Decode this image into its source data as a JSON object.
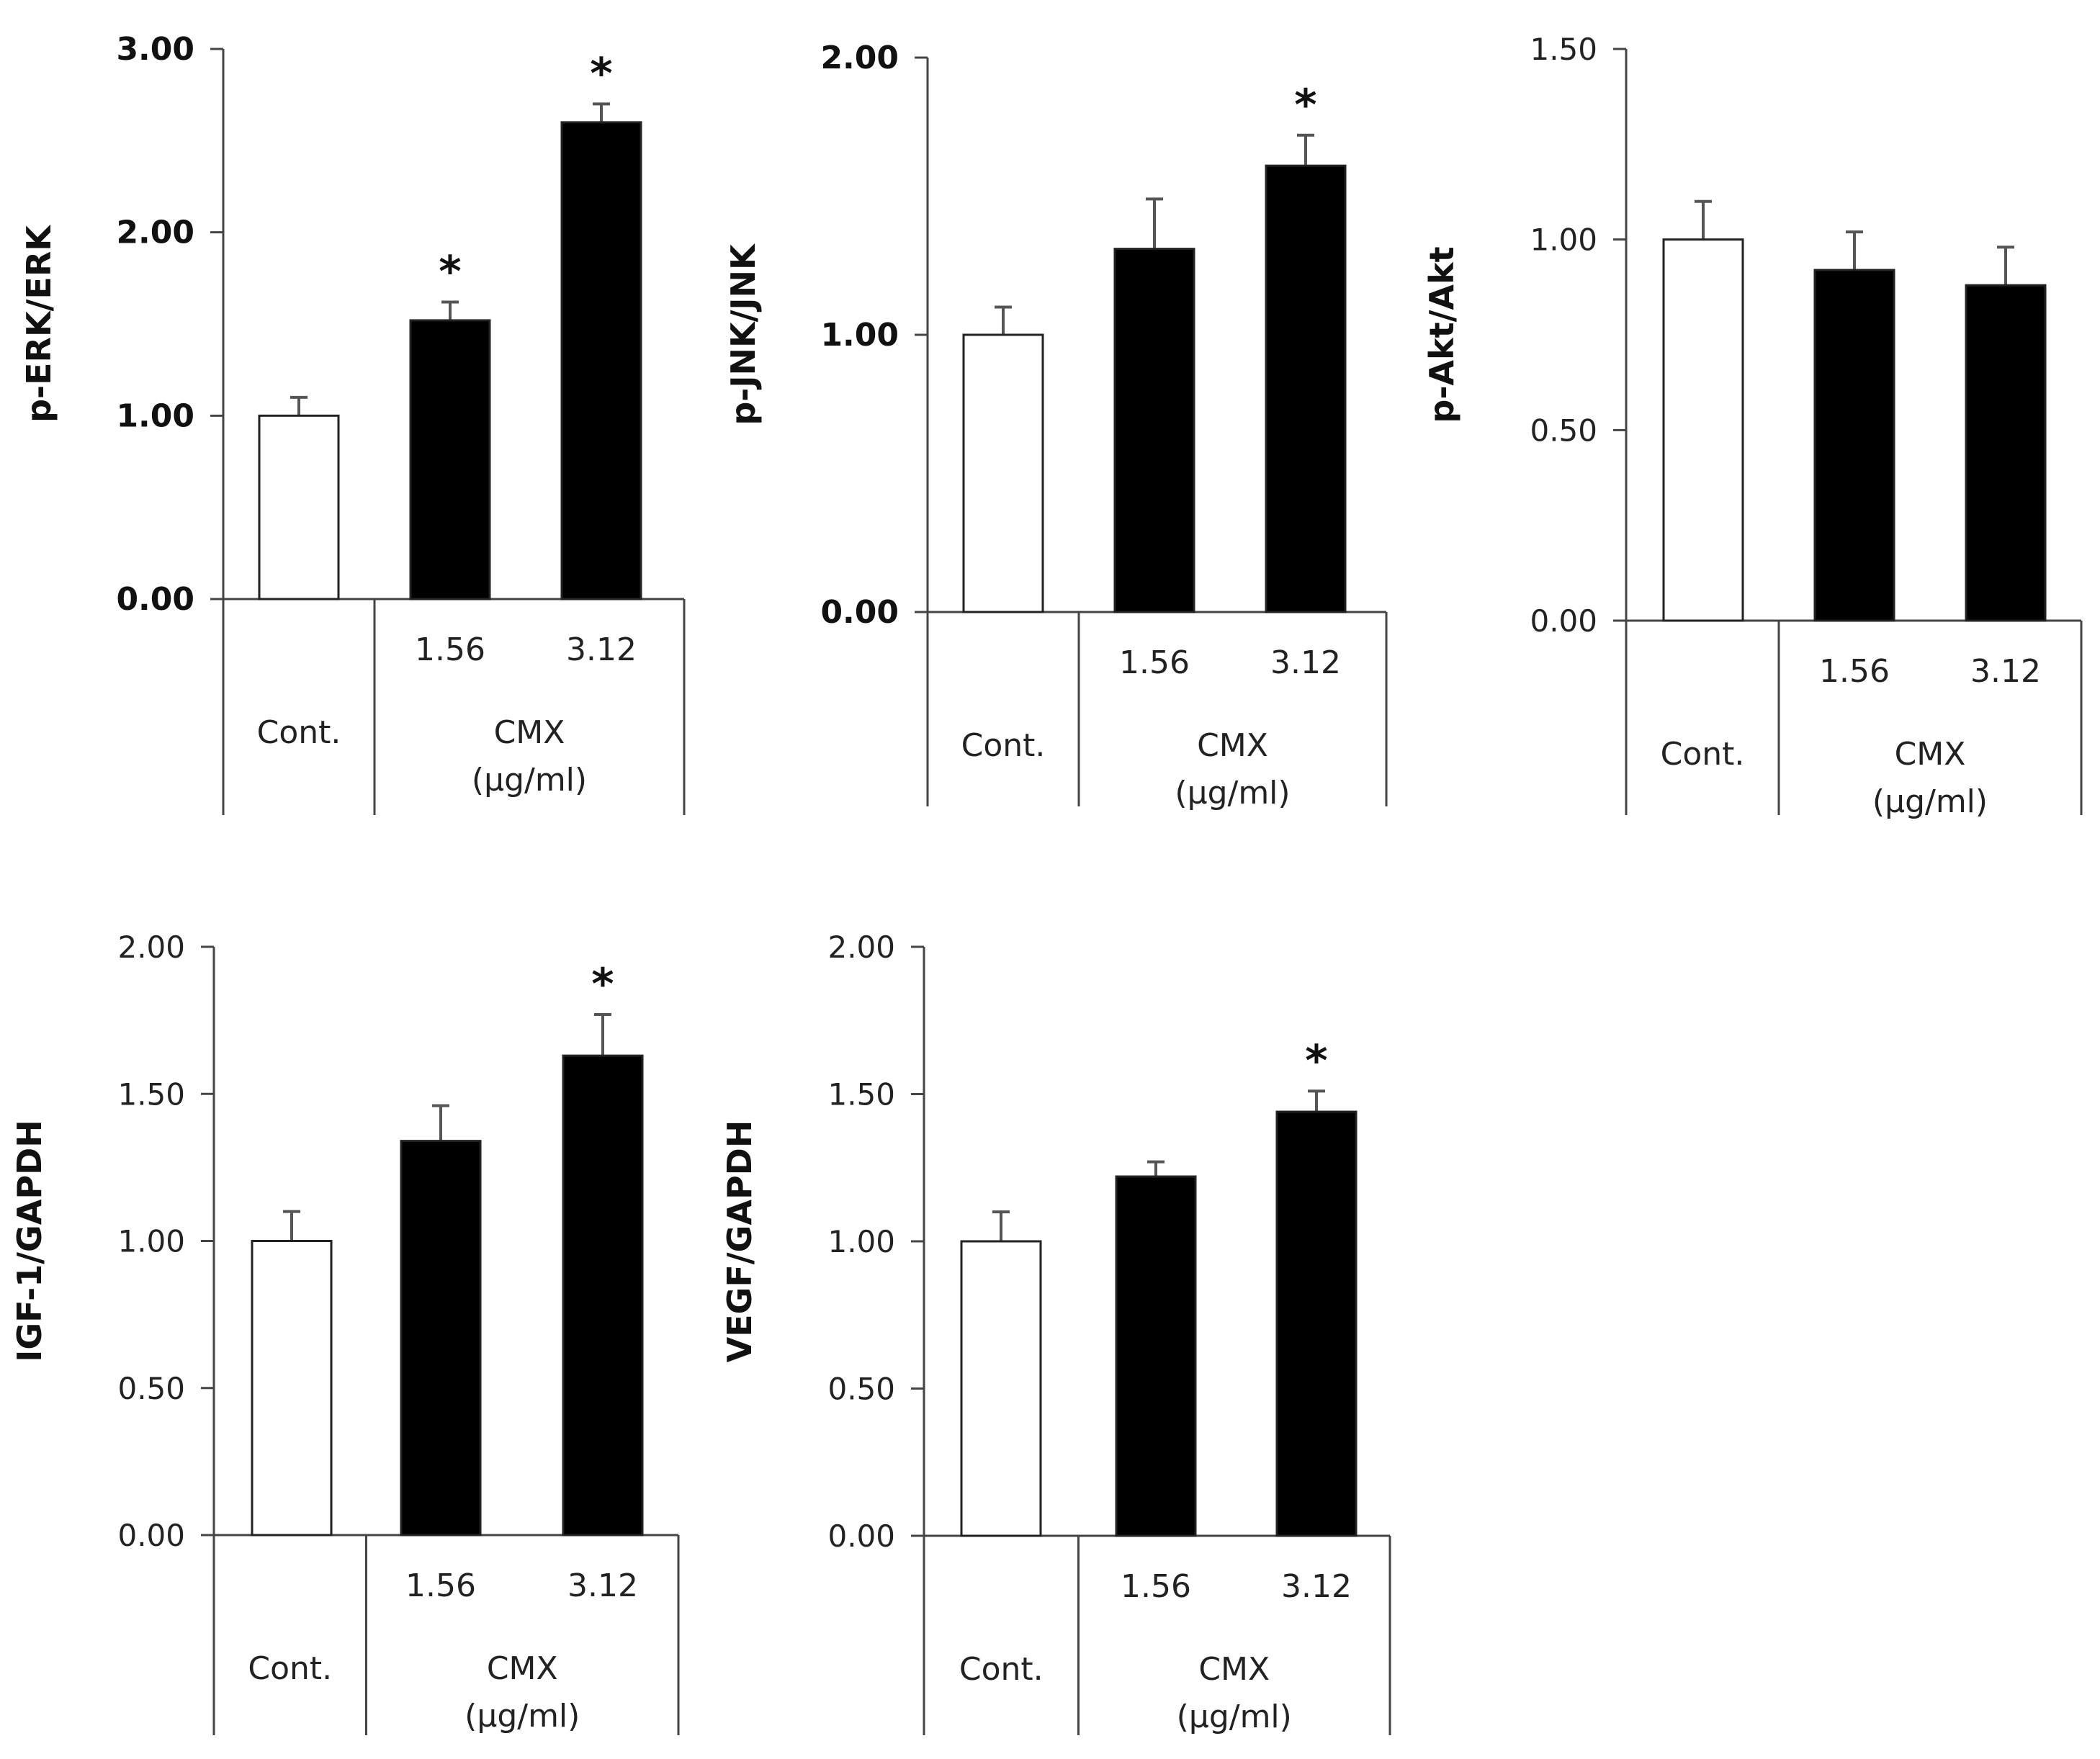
{
  "chart_data": [
    {
      "type": "bar",
      "ylabel": "p-ERK/ERK",
      "ylim": [
        0,
        3
      ],
      "yticks": [
        "0.00",
        "1.00",
        "2.00",
        "3.00"
      ],
      "tick_style": "bold",
      "categories": [
        "Cont.",
        "1.56",
        "3.12"
      ],
      "values": [
        1.0,
        1.52,
        2.6
      ],
      "errors": [
        0.1,
        0.1,
        0.1
      ],
      "significant": [
        false,
        true,
        true
      ],
      "star": "*",
      "group_label": "Cont.",
      "treatment_label": "CMX",
      "unit_label": "(µg/ml)",
      "fills": [
        "#ffffff",
        "#000000",
        "#000000"
      ]
    },
    {
      "type": "bar",
      "ylabel": "p-JNK/JNK",
      "ylim": [
        0,
        2
      ],
      "yticks": [
        "0.00",
        "1.00",
        "2.00"
      ],
      "tick_style": "bold",
      "categories": [
        "Cont.",
        "1.56",
        "3.12"
      ],
      "values": [
        1.0,
        1.31,
        1.61
      ],
      "errors": [
        0.1,
        0.18,
        0.11
      ],
      "significant": [
        false,
        false,
        true
      ],
      "star": "*",
      "group_label": "Cont.",
      "treatment_label": "CMX",
      "unit_label": "(µg/ml)",
      "fills": [
        "#ffffff",
        "#000000",
        "#000000"
      ]
    },
    {
      "type": "bar",
      "ylabel": "p-Akt/Akt",
      "ylim": [
        0,
        1.5
      ],
      "yticks": [
        "0.00",
        "0.50",
        "1.00",
        "1.50"
      ],
      "tick_style": "normal",
      "categories": [
        "Cont.",
        "1.56",
        "3.12"
      ],
      "values": [
        1.0,
        0.92,
        0.88
      ],
      "errors": [
        0.1,
        0.1,
        0.1
      ],
      "significant": [
        false,
        false,
        false
      ],
      "star": "*",
      "group_label": "Cont.",
      "treatment_label": "CMX",
      "unit_label": "(µg/ml)",
      "fills": [
        "#ffffff",
        "#000000",
        "#000000"
      ]
    },
    {
      "type": "bar",
      "ylabel": "IGF-1/GAPDH",
      "ylim": [
        0,
        2
      ],
      "yticks": [
        "0.00",
        "0.50",
        "1.00",
        "1.50",
        "2.00"
      ],
      "tick_style": "normal",
      "categories": [
        "Cont.",
        "1.56",
        "3.12"
      ],
      "values": [
        1.0,
        1.34,
        1.63
      ],
      "errors": [
        0.1,
        0.12,
        0.14
      ],
      "significant": [
        false,
        false,
        true
      ],
      "star": "*",
      "group_label": "Cont.",
      "treatment_label": "CMX",
      "unit_label": "(µg/ml)",
      "fills": [
        "#ffffff",
        "#000000",
        "#000000"
      ]
    },
    {
      "type": "bar",
      "ylabel": "VEGF/GAPDH",
      "ylim": [
        0,
        2
      ],
      "yticks": [
        "0.00",
        "0.50",
        "1.00",
        "1.50",
        "2.00"
      ],
      "tick_style": "normal",
      "categories": [
        "Cont.",
        "1.56",
        "3.12"
      ],
      "values": [
        1.0,
        1.22,
        1.44
      ],
      "errors": [
        0.1,
        0.05,
        0.07
      ],
      "significant": [
        false,
        false,
        true
      ],
      "star": "*",
      "group_label": "Cont.",
      "treatment_label": "CMX",
      "unit_label": "(µg/ml)",
      "fills": [
        "#ffffff",
        "#000000",
        "#000000"
      ]
    }
  ]
}
